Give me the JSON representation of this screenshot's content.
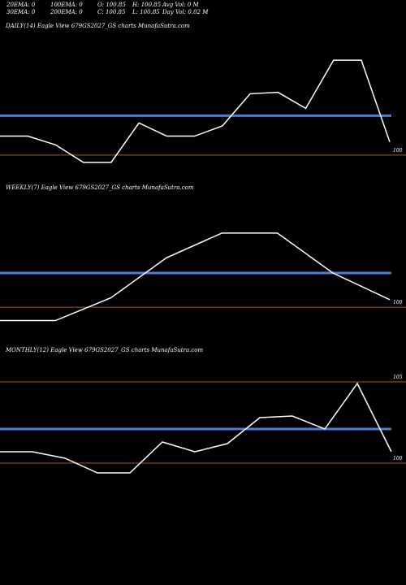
{
  "header": {
    "row1": {
      "ema20": "20EMA: 0",
      "ema100": "100EMA: 0",
      "open": "O: 100.85",
      "high": "H: 100.85",
      "avg_vol": "Avg Vol: 0  M"
    },
    "row2": {
      "ema30": "30EMA: 0",
      "ema200": "200EMA: 0",
      "close": "C: 100.85",
      "low": "L: 100.85",
      "day_vol": "Day Vol: 0.02  M"
    }
  },
  "colors": {
    "background": "#000000",
    "price_line": "#ffffff",
    "ma_line": "#4a7fd6",
    "level_line": "#a85a1e"
  },
  "chart_data": [
    {
      "type": "line",
      "title": "DAILY(14) Eagle  View  679GS2027_GS charts MunafaSutra.com",
      "x": [
        1,
        2,
        3,
        4,
        5,
        6,
        7,
        8,
        9,
        10,
        11,
        12,
        13,
        14
      ],
      "values": [
        99.87,
        99.87,
        99.81,
        99.69,
        99.69,
        99.96,
        99.87,
        99.87,
        99.94,
        100.16,
        100.17,
        100.06,
        100.39,
        100.39
      ],
      "last": 99.83,
      "ylim": [
        99.55,
        100.58
      ],
      "level_lines": [
        99.74
      ],
      "level_labels": [
        "100"
      ],
      "ma_value": 100.01
    },
    {
      "type": "line",
      "title": "WEEKLY(7) Eagle  View  679GS2027_GS charts MunafaSutra.com",
      "x": [
        1,
        2,
        3,
        4,
        5,
        6,
        7
      ],
      "values": [
        99.68,
        99.68,
        99.8,
        100.01,
        100.14,
        100.14,
        99.93
      ],
      "last": 99.79,
      "ylim": [
        99.55,
        100.34
      ],
      "level_lines": [
        99.75
      ],
      "level_labels": [
        "100"
      ],
      "ma_value": 99.93
    },
    {
      "type": "line",
      "title": "MONTHLY(12) Eagle  View  679GS2027_GS charts MunafaSutra.com",
      "x": [
        1,
        2,
        3,
        4,
        5,
        6,
        7,
        8,
        9,
        10,
        11,
        12
      ],
      "values": [
        100.82,
        100.82,
        100.78,
        100.69,
        100.69,
        100.88,
        100.82,
        100.87,
        101.03,
        101.04,
        100.96,
        101.24
      ],
      "last": 100.82,
      "ylim": [
        100.4,
        101.4
      ],
      "level_lines": [
        101.25,
        100.75
      ],
      "level_labels": [
        "105",
        "100"
      ],
      "ma_value": 100.96
    }
  ]
}
